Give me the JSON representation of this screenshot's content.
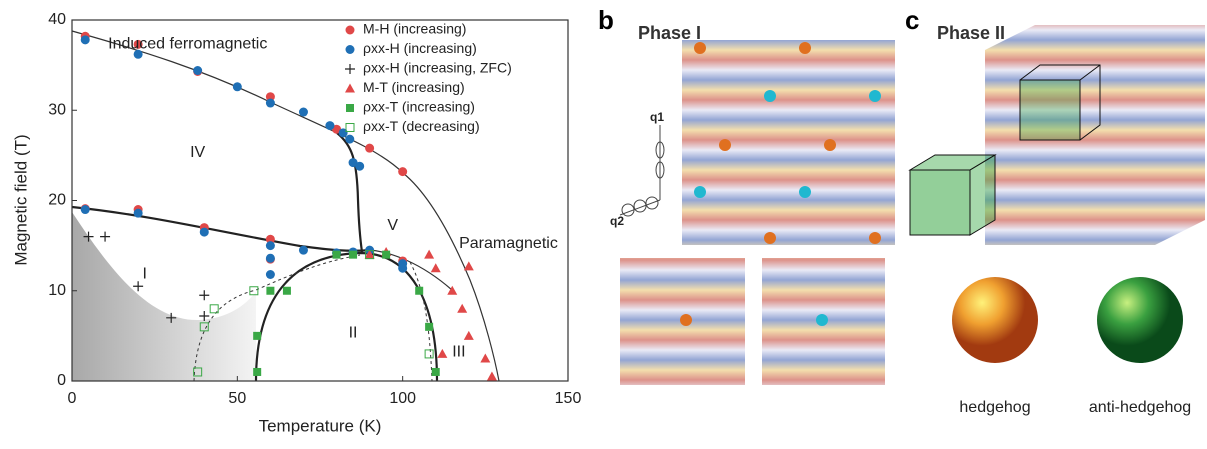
{
  "chart_data": {
    "type": "scatter",
    "x_label": "Temperature (K)",
    "y_label": "Magnetic field (T)",
    "xlim": [
      0,
      150
    ],
    "ylim": [
      0,
      40
    ],
    "xticks": [
      0,
      50,
      100,
      150
    ],
    "yticks": [
      0,
      10,
      20,
      30,
      40
    ],
    "legend": "upper right",
    "series": [
      {
        "name": "M-H (increasing)",
        "color": "#e04848",
        "marker": "circle",
        "x": [
          4,
          20,
          20,
          38,
          40,
          60,
          60,
          80,
          90,
          100,
          4,
          60,
          100
        ],
        "values": [
          38.2,
          37.3,
          19.0,
          34.3,
          17.0,
          31.5,
          15.7,
          27.9,
          25.8,
          23.2,
          19.1,
          13.5,
          13.3
        ]
      },
      {
        "name": "ρxx-H (increasing)",
        "color": "#1f6fb5",
        "marker": "circle",
        "x": [
          4,
          20,
          38,
          50,
          60,
          70,
          78,
          82,
          84,
          85,
          87,
          4,
          20,
          40,
          60,
          60,
          60,
          70,
          80,
          85,
          90,
          100,
          100
        ],
        "values": [
          37.8,
          36.2,
          34.4,
          32.6,
          30.8,
          29.8,
          28.3,
          27.5,
          26.8,
          24.2,
          23.8,
          19.0,
          18.6,
          16.5,
          15.0,
          13.6,
          11.8,
          14.5,
          14.2,
          14.3,
          14.5,
          13.0,
          12.5
        ]
      },
      {
        "name": "ρxx-H (increasing, ZFC)",
        "color": "#222222",
        "marker": "plus",
        "x": [
          5,
          10,
          20,
          30,
          40,
          40
        ],
        "values": [
          16.0,
          16.0,
          10.5,
          7.0,
          7.2,
          9.5
        ]
      },
      {
        "name": "M-T (increasing)",
        "color": "#e04848",
        "marker": "triangle",
        "x": [
          90,
          95,
          108,
          110,
          115,
          118,
          120,
          120,
          125,
          127,
          112
        ],
        "values": [
          14.0,
          14.3,
          14.0,
          12.5,
          10.0,
          8.0,
          12.7,
          5.0,
          2.5,
          0.5,
          3.0
        ]
      },
      {
        "name": "ρxx-T (increasing)",
        "color": "#3aa846",
        "marker": "square",
        "x": [
          56,
          56,
          60,
          65,
          80,
          85,
          95,
          105,
          108,
          110
        ],
        "values": [
          1.0,
          5.0,
          10.0,
          10.0,
          14.0,
          14.0,
          14.0,
          10.0,
          6.0,
          1.0
        ]
      },
      {
        "name": "ρxx-T (decreasing)",
        "color": "#3aa846",
        "marker": "open-square",
        "x": [
          38,
          40,
          43,
          55,
          90,
          108
        ],
        "values": [
          1.0,
          6.0,
          8.0,
          10.0,
          14.0,
          3.0
        ]
      }
    ],
    "annotations": [
      {
        "text": "Induced ferromagnetic",
        "x": 35,
        "y": 37.3
      },
      {
        "text": "IV",
        "x": 38,
        "y": 25.3
      },
      {
        "text": "V",
        "x": 97,
        "y": 17.2
      },
      {
        "text": "I",
        "x": 22,
        "y": 11.8
      },
      {
        "text": "II",
        "x": 85,
        "y": 5.3
      },
      {
        "text": "III",
        "x": 117,
        "y": 3.2
      },
      {
        "text": "Paramagnetic",
        "x": 132,
        "y": 15.2
      }
    ]
  },
  "panels": [
    {
      "label": "b",
      "title": "Phase I",
      "q1": "q1",
      "q2": "q2"
    },
    {
      "label": "c",
      "title": "Phase II",
      "captions": [
        "hedgehog",
        "anti-hedgehog"
      ]
    }
  ]
}
